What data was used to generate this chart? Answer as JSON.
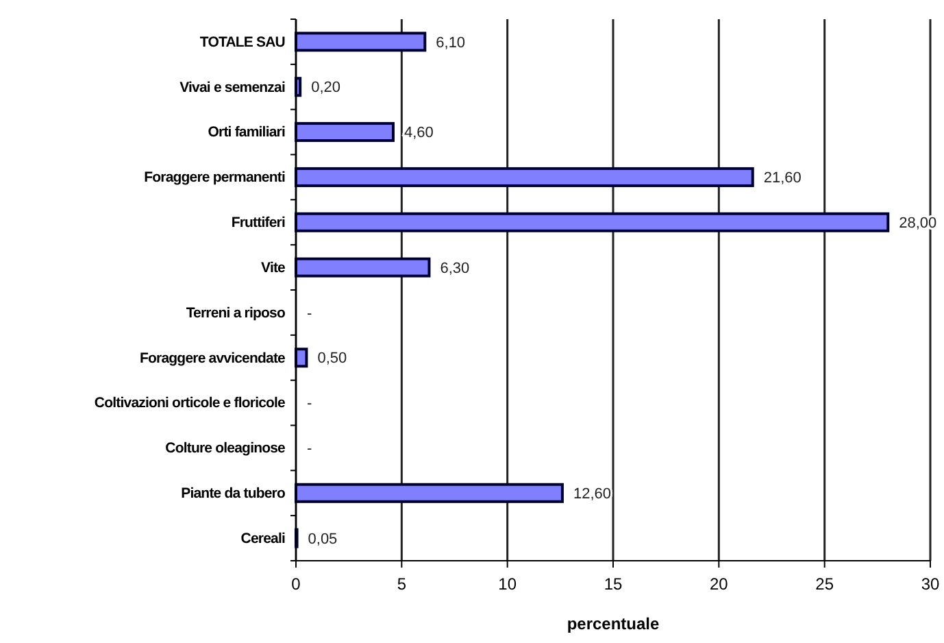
{
  "chart_data": {
    "type": "bar",
    "orientation": "horizontal",
    "xlabel": "percentuale",
    "categories": [
      "TOTALE SAU",
      "Vivai e semenzai",
      "Orti familiari",
      "Foraggere permanenti",
      "Fruttiferi",
      "Vite",
      "Terreni a riposo",
      "Foraggere avvicendate",
      "Coltivazioni orticole e floricole",
      "Colture oleaginose",
      "Piante da tubero",
      "Cereali"
    ],
    "values": [
      6.1,
      0.2,
      4.6,
      21.6,
      28.0,
      6.3,
      null,
      0.5,
      null,
      null,
      12.6,
      0.05
    ],
    "value_labels": [
      "6,10",
      "0,20",
      "4,60",
      "21,60",
      "28,00",
      "6,30",
      "-",
      "0,50",
      "-",
      "-",
      "12,60",
      "0,05"
    ],
    "color": "#8080ff",
    "xlim": [
      0,
      30
    ],
    "xticks": [
      0,
      5,
      10,
      15,
      20,
      25,
      30
    ],
    "grid": "x"
  }
}
